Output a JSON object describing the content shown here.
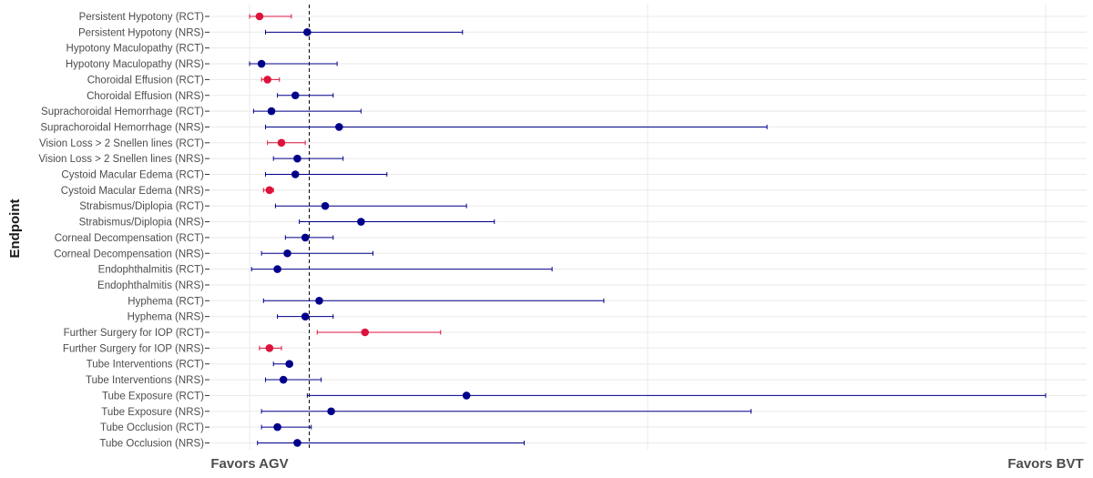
{
  "chart_data": {
    "type": "forest",
    "ylabel": "Endpoint",
    "xlabel": "",
    "x_tick_labels": {
      "left": "Favors AGV",
      "right": "Favors BVT"
    },
    "xlim": [
      0,
      4
    ],
    "reference_line": 0.3,
    "grid": true,
    "colors": {
      "RCT_significant": "#dc143c",
      "default": "#00008b"
    },
    "rows": [
      {
        "label": "Persistent Hypotony (RCT)",
        "est": 0.05,
        "lo": 0.0,
        "hi": 0.21,
        "color": "#dc143c"
      },
      {
        "label": "Persistent Hypotony (NRS)",
        "est": 0.29,
        "lo": 0.08,
        "hi": 1.07,
        "color": "#00008b"
      },
      {
        "label": "Hypotony Maculopathy (RCT)",
        "est": null,
        "lo": null,
        "hi": null,
        "color": "#00008b"
      },
      {
        "label": "Hypotony Maculopathy (NRS)",
        "est": 0.06,
        "lo": 0.0,
        "hi": 0.44,
        "color": "#00008b"
      },
      {
        "label": "Choroidal Effusion (RCT)",
        "est": 0.09,
        "lo": 0.06,
        "hi": 0.15,
        "color": "#dc143c"
      },
      {
        "label": "Choroidal Effusion (NRS)",
        "est": 0.23,
        "lo": 0.14,
        "hi": 0.42,
        "color": "#00008b"
      },
      {
        "label": "Suprachoroidal Hemorrhage (RCT)",
        "est": 0.11,
        "lo": 0.02,
        "hi": 0.56,
        "color": "#00008b"
      },
      {
        "label": "Suprachoroidal Hemorrhage (NRS)",
        "est": 0.45,
        "lo": 0.08,
        "hi": 2.6,
        "color": "#00008b"
      },
      {
        "label": "Vision Loss > 2 Snellen lines (RCT)",
        "est": 0.16,
        "lo": 0.09,
        "hi": 0.28,
        "color": "#dc143c"
      },
      {
        "label": "Vision Loss > 2 Snellen lines (NRS)",
        "est": 0.24,
        "lo": 0.12,
        "hi": 0.47,
        "color": "#00008b"
      },
      {
        "label": "Cystoid Macular Edema (RCT)",
        "est": 0.23,
        "lo": 0.08,
        "hi": 0.69,
        "color": "#00008b"
      },
      {
        "label": "Cystoid Macular Edema (NRS)",
        "est": 0.1,
        "lo": 0.07,
        "hi": 0.12,
        "color": "#dc143c"
      },
      {
        "label": "Strabismus/Diplopia (RCT)",
        "est": 0.38,
        "lo": 0.13,
        "hi": 1.09,
        "color": "#00008b"
      },
      {
        "label": "Strabismus/Diplopia (NRS)",
        "est": 0.56,
        "lo": 0.25,
        "hi": 1.23,
        "color": "#00008b"
      },
      {
        "label": "Corneal Decompensation (RCT)",
        "est": 0.28,
        "lo": 0.18,
        "hi": 0.42,
        "color": "#00008b"
      },
      {
        "label": "Corneal Decompensation (NRS)",
        "est": 0.19,
        "lo": 0.06,
        "hi": 0.62,
        "color": "#00008b"
      },
      {
        "label": "Endophthalmitis (RCT)",
        "est": 0.14,
        "lo": 0.01,
        "hi": 1.52,
        "color": "#00008b"
      },
      {
        "label": "Endophthalmitis (NRS)",
        "est": null,
        "lo": null,
        "hi": null,
        "color": "#00008b"
      },
      {
        "label": "Hyphema (RCT)",
        "est": 0.35,
        "lo": 0.07,
        "hi": 1.78,
        "color": "#00008b"
      },
      {
        "label": "Hyphema (NRS)",
        "est": 0.28,
        "lo": 0.14,
        "hi": 0.42,
        "color": "#00008b"
      },
      {
        "label": "Further Surgery for IOP (RCT)",
        "est": 0.58,
        "lo": 0.34,
        "hi": 0.96,
        "color": "#dc143c"
      },
      {
        "label": "Further Surgery for IOP (NRS)",
        "est": 0.1,
        "lo": 0.05,
        "hi": 0.16,
        "color": "#dc143c"
      },
      {
        "label": "Tube Interventions (RCT)",
        "est": 0.2,
        "lo": 0.12,
        "hi": 0.21,
        "color": "#00008b"
      },
      {
        "label": "Tube Interventions (NRS)",
        "est": 0.17,
        "lo": 0.08,
        "hi": 0.36,
        "color": "#00008b"
      },
      {
        "label": "Tube Exposure (RCT)",
        "est": 1.09,
        "lo": 0.29,
        "hi": 4.0,
        "color": "#00008b"
      },
      {
        "label": "Tube Exposure (NRS)",
        "est": 0.41,
        "lo": 0.06,
        "hi": 2.52,
        "color": "#00008b"
      },
      {
        "label": "Tube Occlusion (RCT)",
        "est": 0.14,
        "lo": 0.06,
        "hi": 0.31,
        "color": "#00008b"
      },
      {
        "label": "Tube Occlusion (NRS)",
        "est": 0.24,
        "lo": 0.04,
        "hi": 1.38,
        "color": "#00008b"
      }
    ]
  }
}
